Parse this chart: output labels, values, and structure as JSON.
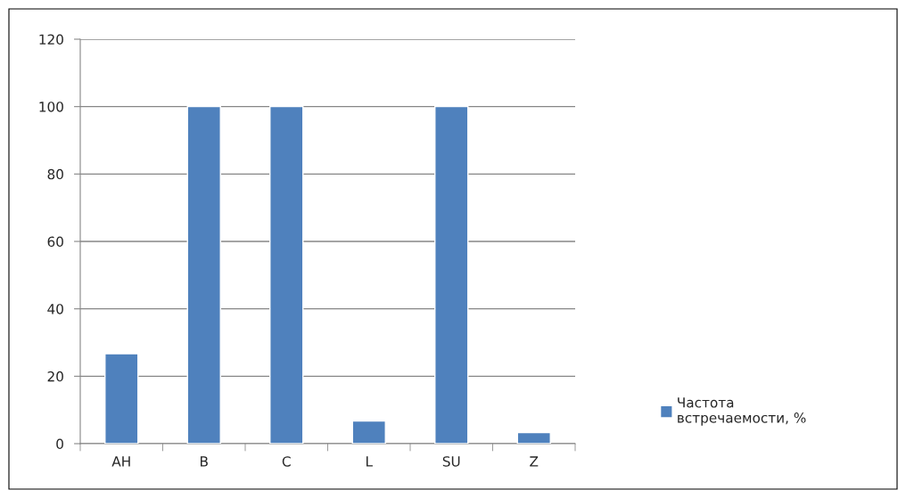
{
  "chart_data": {
    "type": "bar",
    "categories": [
      "AH",
      "B",
      "C",
      "L",
      "SU",
      "Z"
    ],
    "series": [
      {
        "name": "Частота встречаемости, %",
        "color": "#4f81bd",
        "values": [
          26.7,
          100,
          100,
          6.7,
          100,
          3.3
        ]
      }
    ],
    "ylim": [
      0,
      120
    ],
    "yticks": [
      0,
      20,
      40,
      60,
      80,
      100,
      120
    ],
    "grid": "y",
    "legend": "right"
  }
}
